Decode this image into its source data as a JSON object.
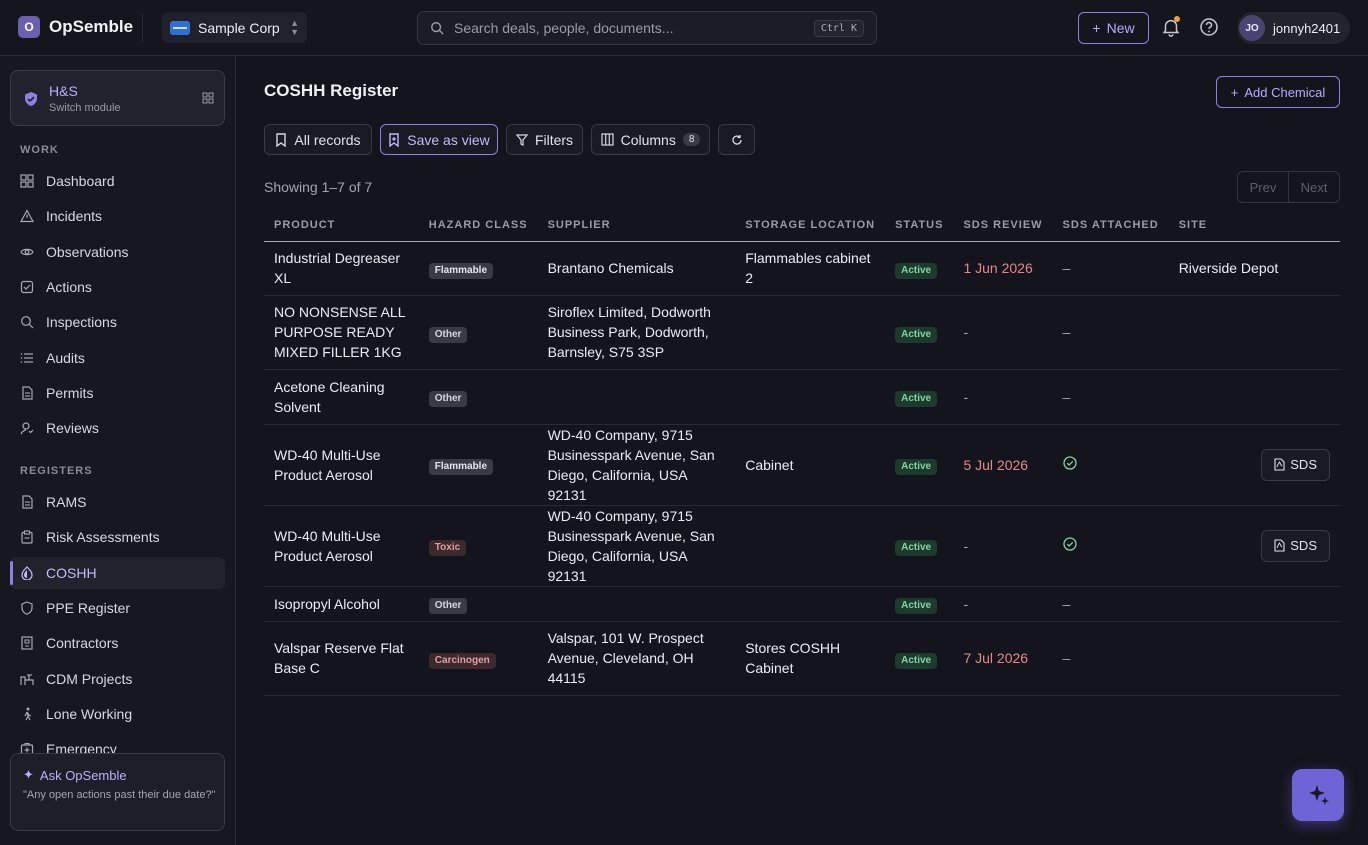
{
  "app": {
    "brand_letter": "O",
    "brand_name": "OpSemble",
    "org_name": "Sample Corp",
    "search_placeholder": "Search deals, people, documents...",
    "search_shortcut": "Ctrl K",
    "new_label": "New",
    "user_initials": "JO",
    "user_name": "jonnyh2401"
  },
  "sidebar": {
    "module_title": "H&S",
    "module_sub": "Switch module",
    "work_label": "WORK",
    "work_items": [
      {
        "label": "Dashboard",
        "icon": "grid-icon"
      },
      {
        "label": "Incidents",
        "icon": "warning-triangle-icon"
      },
      {
        "label": "Observations",
        "icon": "eye-icon"
      },
      {
        "label": "Actions",
        "icon": "checkbox-icon"
      },
      {
        "label": "Inspections",
        "icon": "search-icon"
      },
      {
        "label": "Audits",
        "icon": "list-icon"
      },
      {
        "label": "Permits",
        "icon": "document-icon"
      },
      {
        "label": "Reviews",
        "icon": "user-review-icon"
      }
    ],
    "registers_label": "REGISTERS",
    "register_items": [
      {
        "label": "RAMS",
        "icon": "document-icon"
      },
      {
        "label": "Risk Assessments",
        "icon": "clipboard-icon"
      },
      {
        "label": "COSHH",
        "icon": "flask-icon"
      },
      {
        "label": "PPE Register",
        "icon": "shield-icon"
      },
      {
        "label": "Contractors",
        "icon": "building-icon"
      },
      {
        "label": "CDM Projects",
        "icon": "construction-icon"
      },
      {
        "label": "Lone Working",
        "icon": "walking-person-icon"
      },
      {
        "label": "Emergency",
        "icon": "first-aid-icon"
      }
    ],
    "active_item": "COSHH",
    "ask_title": "Ask OpSemble",
    "ask_text": "\"Any open actions past their due date?\""
  },
  "main": {
    "title": "COSHH Register",
    "add_label": "Add Chemical",
    "toolbar": {
      "all_records": "All records",
      "save_view": "Save as view",
      "filters": "Filters",
      "columns": "Columns",
      "columns_count": "8"
    },
    "showing": "Showing 1–7 of 7",
    "prev": "Prev",
    "next": "Next",
    "columns": [
      "PRODUCT",
      "HAZARD CLASS",
      "SUPPLIER",
      "STORAGE LOCATION",
      "STATUS",
      "SDS REVIEW",
      "SDS ATTACHED",
      "SITE"
    ],
    "rows": [
      {
        "product": "Industrial Degreaser XL",
        "hazard": "Flammable",
        "hazard_kind": "flammable",
        "supplier": "Brantano Chemicals",
        "storage": "Flammables cabinet 2",
        "status": "Active",
        "review": "1 Jun 2026",
        "review_due": true,
        "attached": "–",
        "has_sds": false,
        "site": "Riverside Depot"
      },
      {
        "product": "NO NONSENSE ALL PURPOSE READY MIXED FILLER 1KG",
        "hazard": "Other",
        "hazard_kind": "other",
        "supplier": "Siroflex Limited, Dodworth Business Park, Dodworth, Barnsley, S75 3SP",
        "storage": "",
        "status": "Active",
        "review": "-",
        "review_due": false,
        "attached": "–",
        "has_sds": false,
        "site": ""
      },
      {
        "product": "Acetone Cleaning Solvent",
        "hazard": "Other",
        "hazard_kind": "other",
        "supplier": "",
        "storage": "",
        "status": "Active",
        "review": "-",
        "review_due": false,
        "attached": "–",
        "has_sds": false,
        "site": ""
      },
      {
        "product": "WD-40 Multi-Use Product Aerosol",
        "hazard": "Flammable",
        "hazard_kind": "flammable",
        "supplier": "WD-40 Company, 9715 Businesspark Avenue, San Diego, California, USA 92131",
        "storage": "Cabinet",
        "status": "Active",
        "review": "5 Jul 2026",
        "review_due": true,
        "attached": "check",
        "has_sds": true,
        "sds_label": "SDS",
        "site": ""
      },
      {
        "product": "WD-40 Multi-Use Product Aerosol",
        "hazard": "Toxic",
        "hazard_kind": "toxic",
        "supplier": "WD-40 Company, 9715 Businesspark Avenue, San Diego, California, USA 92131",
        "storage": "",
        "status": "Active",
        "review": "-",
        "review_due": false,
        "attached": "check",
        "has_sds": true,
        "sds_label": "SDS",
        "site": ""
      },
      {
        "product": "Isopropyl Alcohol",
        "hazard": "Other",
        "hazard_kind": "other",
        "supplier": "",
        "storage": "",
        "status": "Active",
        "review": "-",
        "review_due": false,
        "attached": "–",
        "has_sds": false,
        "site": ""
      },
      {
        "product": "Valspar Reserve Flat Base C",
        "hazard": "Carcinogen",
        "hazard_kind": "carcinogen",
        "supplier": "Valspar, 101 W. Prospect Avenue, Cleveland, OH 44115",
        "storage": "Stores COSHH Cabinet",
        "status": "Active",
        "review": "7 Jul 2026",
        "review_due": true,
        "attached": "–",
        "has_sds": false,
        "site": ""
      }
    ]
  }
}
